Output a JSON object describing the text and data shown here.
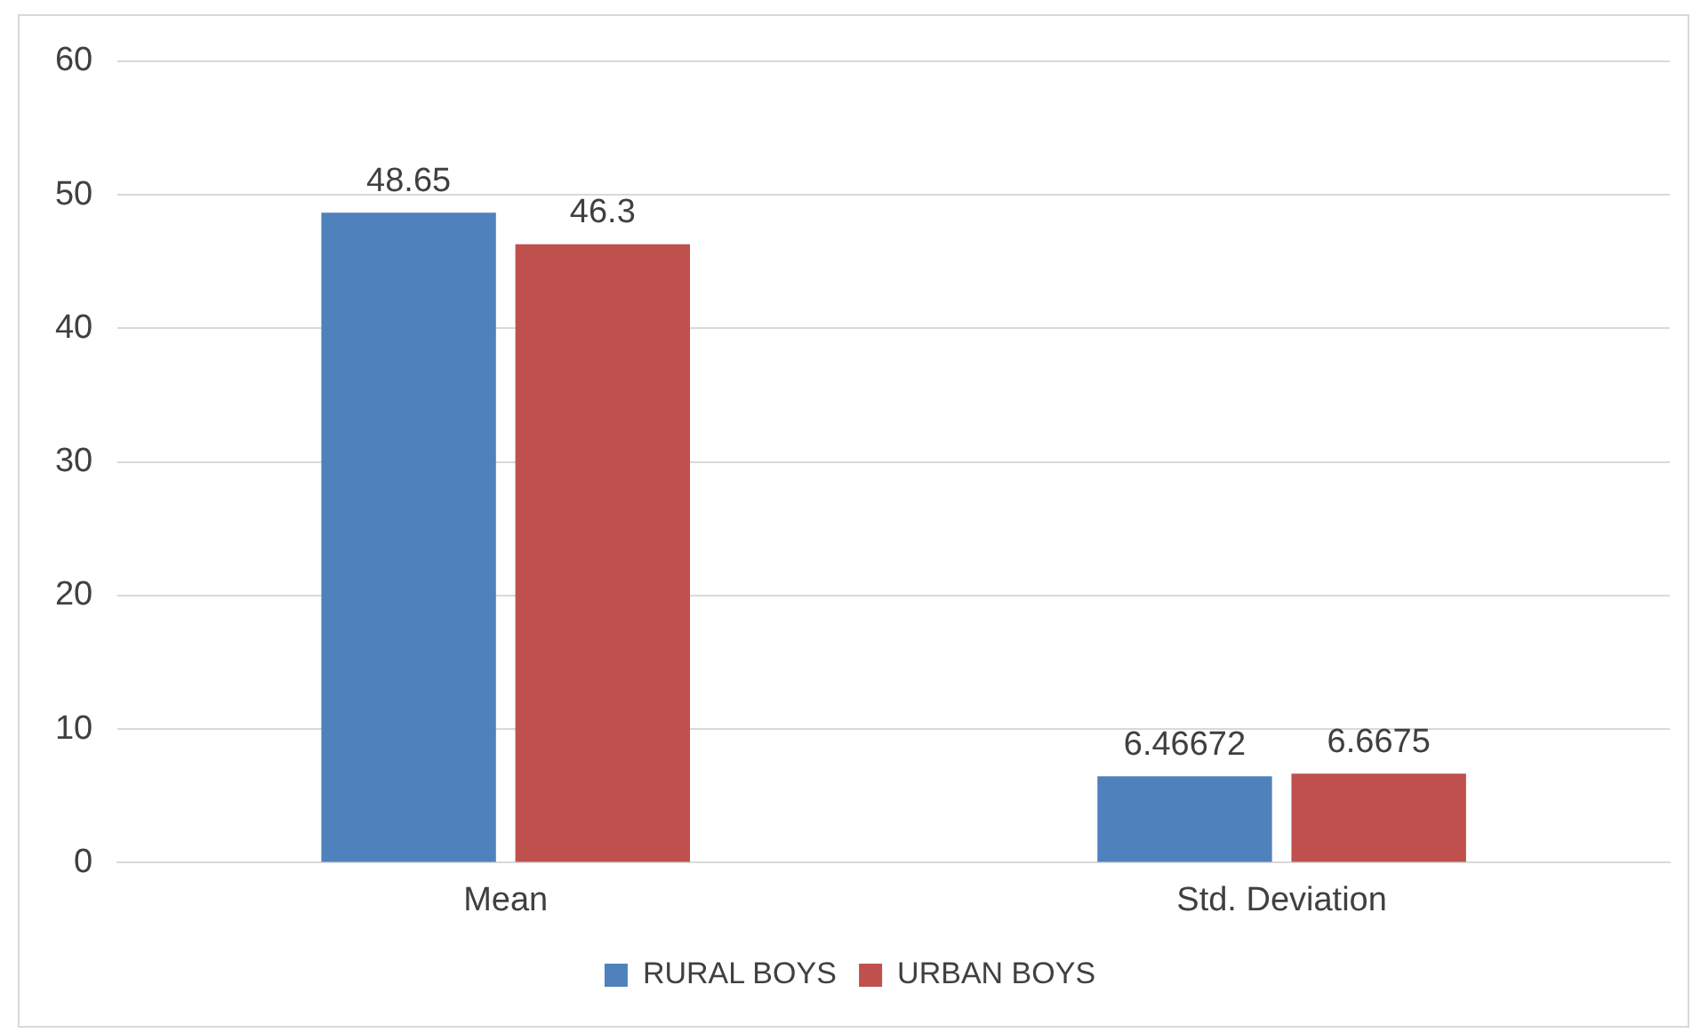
{
  "chart_data": {
    "type": "bar",
    "categories": [
      "Mean",
      "Std. Deviation"
    ],
    "series": [
      {
        "name": "RURAL BOYS",
        "color": "#4f81bd",
        "values": [
          48.65,
          6.46672
        ]
      },
      {
        "name": "URBAN BOYS",
        "color": "#c0504d",
        "values": [
          46.3,
          6.6675
        ]
      }
    ],
    "ylim": [
      0,
      60
    ],
    "yticks": [
      0,
      10,
      20,
      30,
      40,
      50,
      60
    ],
    "grid": "y",
    "legend": "bottom",
    "data_labels": true
  }
}
